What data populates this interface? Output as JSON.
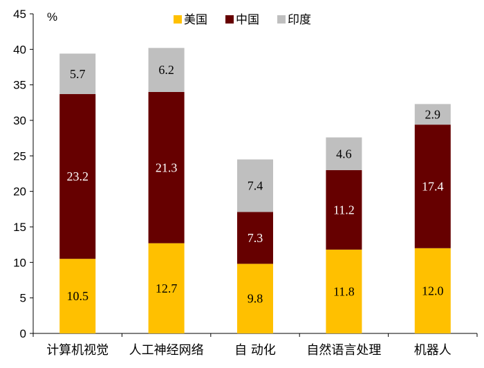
{
  "chart_data": {
    "type": "bar",
    "stacked": true,
    "title": "",
    "xlabel": "",
    "ylabel": "%",
    "ylim": [
      0,
      45
    ],
    "yticks": [
      0,
      5,
      10,
      15,
      20,
      25,
      30,
      35,
      40,
      45
    ],
    "grid": false,
    "legend_position": "top",
    "categories": [
      "计算机视觉",
      "人工神经网络",
      "自 动化",
      "自然语言处理",
      "机器人"
    ],
    "series": [
      {
        "name": "美国",
        "color": "#FFC000",
        "label_color": "#000000",
        "values": [
          10.5,
          12.7,
          9.8,
          11.8,
          12.0
        ]
      },
      {
        "name": "中国",
        "color": "#660000",
        "label_color": "#FFFFFF",
        "values": [
          23.2,
          21.3,
          7.3,
          11.2,
          17.4
        ]
      },
      {
        "name": "印度",
        "color": "#BFBFBF",
        "label_color": "#000000",
        "values": [
          5.7,
          6.2,
          7.4,
          4.6,
          2.9
        ]
      }
    ]
  }
}
